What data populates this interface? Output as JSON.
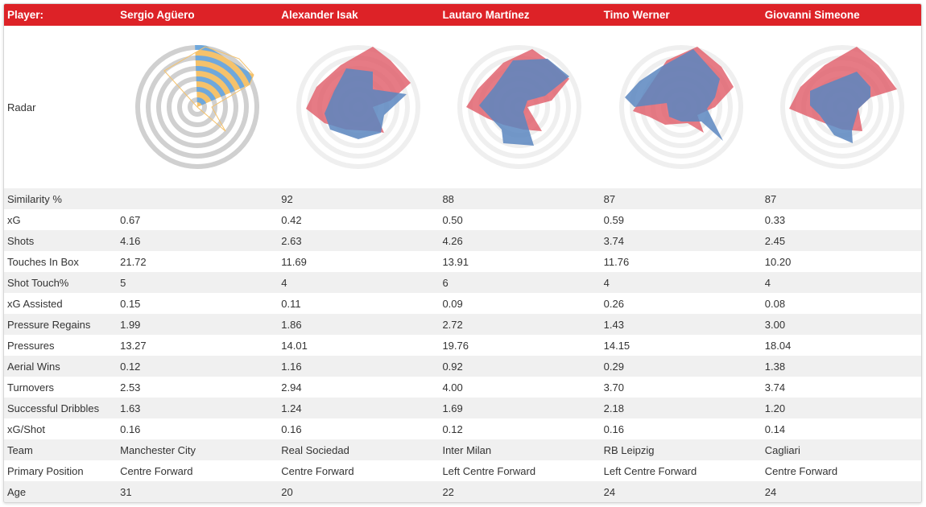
{
  "header": {
    "label": "Player:",
    "players": [
      "Sergio Agüero",
      "Alexander Isak",
      "Lautaro Martínez",
      "Timo Werner",
      "Giovanni Simeone"
    ]
  },
  "radar_label": "Radar",
  "colors": {
    "header_bg": "#dd2227",
    "comparison_player": "#e05a66",
    "similar_player": "#5b86c0",
    "overlap": "#6a63a5",
    "base_yellow": "#f5c26b",
    "base_blue": "#6fa8dc",
    "ring_gray": "#d0d0d0"
  },
  "rows": [
    {
      "label": "Similarity %",
      "values": [
        "",
        "92",
        "88",
        "87",
        "87"
      ]
    },
    {
      "label": "xG",
      "values": [
        "0.67",
        "0.42",
        "0.50",
        "0.59",
        "0.33"
      ]
    },
    {
      "label": "Shots",
      "values": [
        "4.16",
        "2.63",
        "4.26",
        "3.74",
        "2.45"
      ]
    },
    {
      "label": "Touches In Box",
      "values": [
        "21.72",
        "11.69",
        "13.91",
        "11.76",
        "10.20"
      ]
    },
    {
      "label": "Shot Touch%",
      "values": [
        "5",
        "4",
        "6",
        "4",
        "4"
      ]
    },
    {
      "label": "xG Assisted",
      "values": [
        "0.15",
        "0.11",
        "0.09",
        "0.26",
        "0.08"
      ]
    },
    {
      "label": "Pressure Regains",
      "values": [
        "1.99",
        "1.86",
        "2.72",
        "1.43",
        "3.00"
      ]
    },
    {
      "label": "Pressures",
      "values": [
        "13.27",
        "14.01",
        "19.76",
        "14.15",
        "18.04"
      ]
    },
    {
      "label": "Aerial Wins",
      "values": [
        "0.12",
        "1.16",
        "0.92",
        "0.29",
        "1.38"
      ]
    },
    {
      "label": "Turnovers",
      "values": [
        "2.53",
        "2.94",
        "4.00",
        "3.70",
        "3.74"
      ]
    },
    {
      "label": "Successful Dribbles",
      "values": [
        "1.63",
        "1.24",
        "1.69",
        "2.18",
        "1.20"
      ]
    },
    {
      "label": "xG/Shot",
      "values": [
        "0.16",
        "0.16",
        "0.12",
        "0.16",
        "0.14"
      ]
    },
    {
      "label": "Team",
      "values": [
        "Manchester City",
        "Real Sociedad",
        "Inter Milan",
        "RB Leipzig",
        "Cagliari"
      ]
    },
    {
      "label": "Primary Position",
      "values": [
        "Centre Forward",
        "Centre Forward",
        "Left Centre Forward",
        "Left Centre Forward",
        "Centre Forward"
      ]
    },
    {
      "label": "Age",
      "values": [
        "31",
        "20",
        "22",
        "24",
        "24"
      ]
    }
  ]
}
